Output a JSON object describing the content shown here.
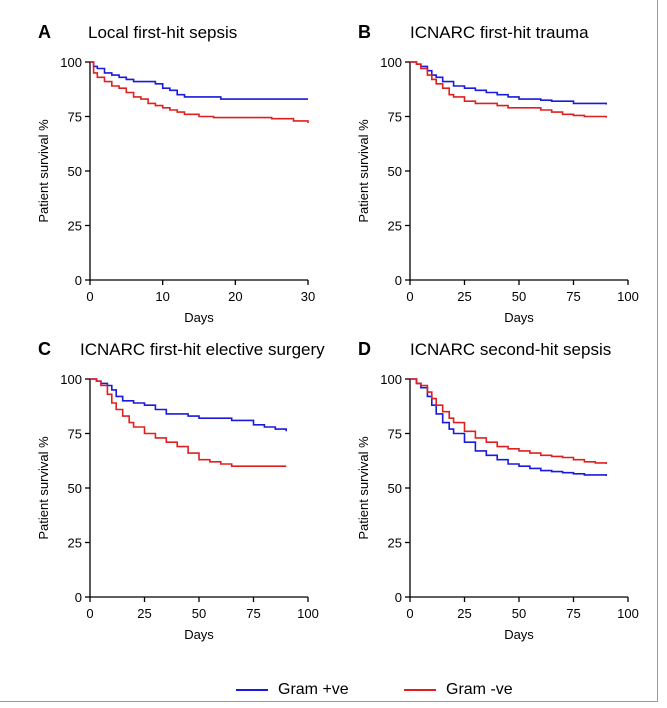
{
  "chart_data": [
    {
      "type": "line",
      "panel_letter": "A",
      "title": "Local first-hit sepsis",
      "xlabel": "Days",
      "ylabel": "Patient survival %",
      "xlim": [
        0,
        30
      ],
      "ylim": [
        0,
        100
      ],
      "xticks": [
        0,
        10,
        20,
        30
      ],
      "yticks": [
        0,
        25,
        50,
        75,
        100
      ],
      "series": [
        {
          "name": "Gram +ve",
          "color": "#1a1adc",
          "x": [
            0,
            0.5,
            1,
            2,
            3,
            4,
            5,
            6,
            7,
            8,
            9,
            10,
            11,
            12,
            13,
            15,
            18,
            20,
            25,
            30
          ],
          "y": [
            100,
            98,
            97,
            95,
            94,
            93,
            92,
            91,
            91,
            91,
            90,
            88,
            87,
            85,
            84,
            84,
            83,
            83,
            83,
            83
          ]
        },
        {
          "name": "Gram -ve",
          "color": "#e02020",
          "x": [
            0,
            0.5,
            1,
            2,
            3,
            4,
            5,
            6,
            7,
            8,
            9,
            10,
            11,
            12,
            13,
            15,
            17,
            20,
            25,
            28,
            30
          ],
          "y": [
            100,
            95,
            93,
            91,
            89,
            88,
            86,
            84,
            83,
            81,
            80,
            79,
            78,
            77,
            76,
            75,
            74.5,
            74.5,
            74,
            73,
            72
          ]
        }
      ]
    },
    {
      "type": "line",
      "panel_letter": "B",
      "title": "ICNARC first-hit trauma",
      "xlabel": "Days",
      "ylabel": "Patient survival %",
      "xlim": [
        0,
        100
      ],
      "ylim": [
        0,
        100
      ],
      "xticks": [
        0,
        25,
        50,
        75,
        100
      ],
      "yticks": [
        0,
        25,
        50,
        75,
        100
      ],
      "series": [
        {
          "name": "Gram +ve",
          "color": "#1a1adc",
          "x": [
            0,
            3,
            5,
            8,
            10,
            12,
            15,
            20,
            25,
            30,
            35,
            40,
            45,
            50,
            55,
            60,
            65,
            70,
            75,
            80,
            85,
            90
          ],
          "y": [
            100,
            99,
            98,
            96,
            94,
            93,
            91,
            89,
            88,
            87,
            86,
            85,
            84,
            83,
            83,
            82.5,
            82,
            82,
            81,
            81,
            81,
            80.5
          ]
        },
        {
          "name": "Gram -ve",
          "color": "#e02020",
          "x": [
            0,
            3,
            5,
            8,
            10,
            12,
            15,
            18,
            20,
            25,
            30,
            35,
            40,
            45,
            50,
            55,
            60,
            65,
            70,
            75,
            80,
            85,
            90
          ],
          "y": [
            100,
            99,
            97,
            94,
            92,
            90,
            88,
            85,
            84,
            82,
            81,
            81,
            80,
            79,
            79,
            79,
            78,
            77,
            76,
            75.5,
            75,
            75,
            74.5
          ]
        }
      ]
    },
    {
      "type": "line",
      "panel_letter": "C",
      "title": "ICNARC first-hit elective surgery",
      "xlabel": "Days",
      "ylabel": "Patient survival %",
      "xlim": [
        0,
        100
      ],
      "ylim": [
        0,
        100
      ],
      "xticks": [
        0,
        25,
        50,
        75,
        100
      ],
      "yticks": [
        0,
        25,
        50,
        75,
        100
      ],
      "series": [
        {
          "name": "Gram +ve",
          "color": "#1a1adc",
          "x": [
            0,
            3,
            5,
            8,
            10,
            12,
            15,
            20,
            25,
            30,
            35,
            40,
            45,
            50,
            55,
            60,
            65,
            70,
            75,
            80,
            85,
            90
          ],
          "y": [
            100,
            99,
            98,
            97,
            95,
            92,
            90,
            89,
            88,
            86,
            84,
            84,
            83,
            82,
            82,
            82,
            81,
            81,
            79,
            78,
            77,
            76
          ]
        },
        {
          "name": "Gram -ve",
          "color": "#e02020",
          "x": [
            0,
            3,
            5,
            8,
            10,
            12,
            15,
            18,
            20,
            25,
            30,
            35,
            40,
            45,
            50,
            55,
            60,
            65,
            70,
            75,
            80,
            85,
            90
          ],
          "y": [
            100,
            99,
            97,
            93,
            89,
            86,
            83,
            80,
            78,
            75,
            73,
            71,
            69,
            66,
            63,
            62,
            61,
            60,
            60,
            60,
            60,
            60,
            60
          ]
        }
      ]
    },
    {
      "type": "line",
      "panel_letter": "D",
      "title": "ICNARC second-hit sepsis",
      "xlabel": "Days",
      "ylabel": "Patient survival %",
      "xlim": [
        0,
        100
      ],
      "ylim": [
        0,
        100
      ],
      "xticks": [
        0,
        25,
        50,
        75,
        100
      ],
      "yticks": [
        0,
        25,
        50,
        75,
        100
      ],
      "series": [
        {
          "name": "Gram +ve",
          "color": "#1a1adc",
          "x": [
            0,
            3,
            5,
            8,
            10,
            12,
            15,
            18,
            20,
            25,
            30,
            35,
            40,
            45,
            50,
            55,
            60,
            65,
            70,
            75,
            80,
            85,
            90
          ],
          "y": [
            100,
            98,
            96,
            92,
            88,
            84,
            80,
            77,
            75,
            71,
            67,
            65,
            63,
            61,
            60,
            59,
            58,
            57.5,
            57,
            56.5,
            56,
            56,
            55.5
          ]
        },
        {
          "name": "Gram -ve",
          "color": "#e02020",
          "x": [
            0,
            3,
            5,
            8,
            10,
            12,
            15,
            18,
            20,
            25,
            30,
            35,
            40,
            45,
            50,
            55,
            60,
            65,
            70,
            75,
            80,
            85,
            90
          ],
          "y": [
            100,
            98,
            97,
            94,
            91,
            88,
            85,
            82,
            80,
            76,
            73,
            71,
            69,
            68,
            67,
            66,
            65,
            64.5,
            64,
            63,
            62,
            61.5,
            61
          ]
        }
      ]
    }
  ],
  "legend": {
    "items": [
      {
        "label": "Gram +ve",
        "color": "#1a1adc"
      },
      {
        "label": "Gram -ve",
        "color": "#e02020"
      }
    ]
  }
}
